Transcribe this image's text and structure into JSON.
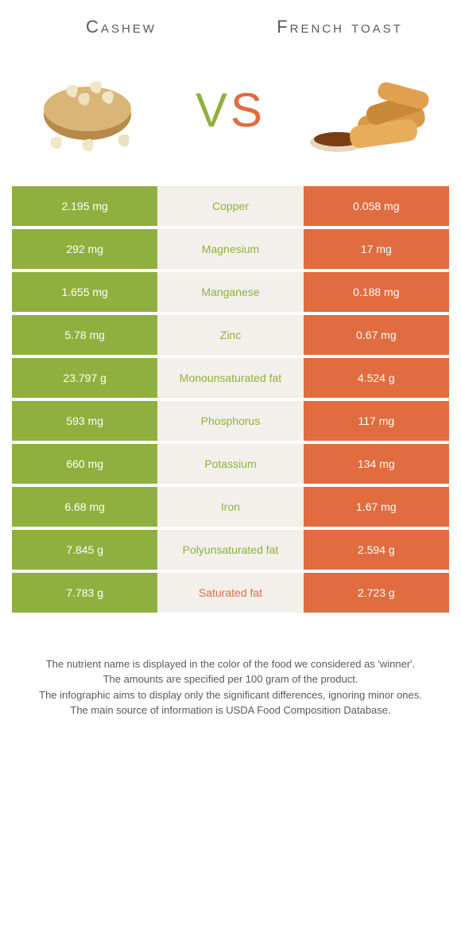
{
  "header": {
    "left_title": "Cashew",
    "right_title": "French toast",
    "vs_v": "V",
    "vs_s": "S"
  },
  "colors": {
    "left_bg": "#8fb03e",
    "right_bg": "#e06c3f",
    "mid_bg": "#f3f0eb",
    "text_gray": "#5a5a5a"
  },
  "rows": [
    {
      "left": "2.195 mg",
      "label": "Copper",
      "right": "0.058 mg",
      "winner": "green"
    },
    {
      "left": "292 mg",
      "label": "Magnesium",
      "right": "17 mg",
      "winner": "green"
    },
    {
      "left": "1.655 mg",
      "label": "Manganese",
      "right": "0.188 mg",
      "winner": "green"
    },
    {
      "left": "5.78 mg",
      "label": "Zinc",
      "right": "0.67 mg",
      "winner": "green"
    },
    {
      "left": "23.797 g",
      "label": "Monounsaturated fat",
      "right": "4.524 g",
      "winner": "green"
    },
    {
      "left": "593 mg",
      "label": "Phosphorus",
      "right": "117 mg",
      "winner": "green"
    },
    {
      "left": "660 mg",
      "label": "Potassium",
      "right": "134 mg",
      "winner": "green"
    },
    {
      "left": "6.68 mg",
      "label": "Iron",
      "right": "1.67 mg",
      "winner": "green"
    },
    {
      "left": "7.845 g",
      "label": "Polyunsaturated fat",
      "right": "2.594 g",
      "winner": "green"
    },
    {
      "left": "7.783 g",
      "label": "Saturated fat",
      "right": "2.723 g",
      "winner": "orange"
    }
  ],
  "footer": {
    "l1": "The nutrient name is displayed in the color of the food we considered as 'winner'.",
    "l2": "The amounts are specified per 100 gram of the product.",
    "l3": "The infographic aims to display only the significant differences, ignoring minor ones.",
    "l4": "The main source of information is USDA Food Composition Database."
  }
}
